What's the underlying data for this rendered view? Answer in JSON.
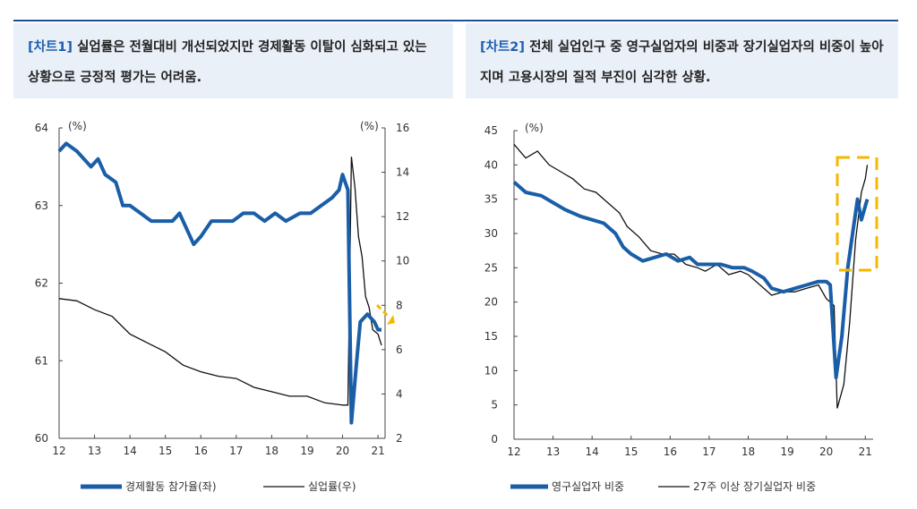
{
  "header_left": {
    "tag": "[차트1]",
    "text": " 실업률은 전월대비 개선되었지만 경제활동 이탈이 심화되고 있는 상황으로 긍정적 평가는 어려움."
  },
  "header_right": {
    "tag": "[차트2]",
    "text": " 전체 실업인구 중 영구실업자의 비중과 장기실업자의 비중이 높아지며 고용시장의 질적 부진이 심각한 상황."
  },
  "chart_data": [
    {
      "type": "line",
      "left_unit": "(%)",
      "right_unit": "(%)",
      "x_ticks": [
        "12",
        "13",
        "14",
        "15",
        "16",
        "17",
        "18",
        "19",
        "20",
        "21"
      ],
      "x_range": [
        2012,
        2021.2
      ],
      "y_left_ticks": [
        "60",
        "61",
        "62",
        "63",
        "64"
      ],
      "y_left_range": [
        60,
        64
      ],
      "y_right_ticks": [
        "2",
        "4",
        "6",
        "8",
        "10",
        "12",
        "14",
        "16"
      ],
      "y_right_range": [
        2,
        16
      ],
      "series": [
        {
          "name": "경제활동 참가율(좌)",
          "axis": "left",
          "color": "#1a5ea8",
          "points": [
            [
              2012.0,
              63.7
            ],
            [
              2012.2,
              63.8
            ],
            [
              2012.5,
              63.7
            ],
            [
              2012.7,
              63.6
            ],
            [
              2012.9,
              63.5
            ],
            [
              2013.1,
              63.6
            ],
            [
              2013.3,
              63.4
            ],
            [
              2013.6,
              63.3
            ],
            [
              2013.8,
              63.0
            ],
            [
              2014.0,
              63.0
            ],
            [
              2014.3,
              62.9
            ],
            [
              2014.6,
              62.8
            ],
            [
              2014.9,
              62.8
            ],
            [
              2015.2,
              62.8
            ],
            [
              2015.4,
              62.9
            ],
            [
              2015.6,
              62.7
            ],
            [
              2015.8,
              62.5
            ],
            [
              2016.0,
              62.6
            ],
            [
              2016.3,
              62.8
            ],
            [
              2016.6,
              62.8
            ],
            [
              2016.9,
              62.8
            ],
            [
              2017.2,
              62.9
            ],
            [
              2017.5,
              62.9
            ],
            [
              2017.8,
              62.8
            ],
            [
              2018.1,
              62.9
            ],
            [
              2018.4,
              62.8
            ],
            [
              2018.8,
              62.9
            ],
            [
              2019.1,
              62.9
            ],
            [
              2019.4,
              63.0
            ],
            [
              2019.7,
              63.1
            ],
            [
              2019.9,
              63.2
            ],
            [
              2020.0,
              63.4
            ],
            [
              2020.15,
              63.2
            ],
            [
              2020.25,
              60.2
            ],
            [
              2020.4,
              61.0
            ],
            [
              2020.5,
              61.5
            ],
            [
              2020.7,
              61.6
            ],
            [
              2020.9,
              61.5
            ],
            [
              2021.0,
              61.4
            ],
            [
              2021.1,
              61.4
            ]
          ]
        },
        {
          "name": "실업률(우)",
          "axis": "right",
          "color": "#111111",
          "points": [
            [
              2012.0,
              8.3
            ],
            [
              2012.5,
              8.2
            ],
            [
              2013.0,
              7.8
            ],
            [
              2013.5,
              7.5
            ],
            [
              2014.0,
              6.7
            ],
            [
              2014.5,
              6.3
            ],
            [
              2015.0,
              5.9
            ],
            [
              2015.5,
              5.3
            ],
            [
              2016.0,
              5.0
            ],
            [
              2016.5,
              4.8
            ],
            [
              2017.0,
              4.7
            ],
            [
              2017.5,
              4.3
            ],
            [
              2018.0,
              4.1
            ],
            [
              2018.5,
              3.9
            ],
            [
              2019.0,
              3.9
            ],
            [
              2019.5,
              3.6
            ],
            [
              2020.0,
              3.5
            ],
            [
              2020.15,
              3.5
            ],
            [
              2020.25,
              14.7
            ],
            [
              2020.35,
              13.3
            ],
            [
              2020.45,
              11.1
            ],
            [
              2020.55,
              10.2
            ],
            [
              2020.65,
              8.4
            ],
            [
              2020.75,
              7.9
            ],
            [
              2020.85,
              6.9
            ],
            [
              2021.0,
              6.7
            ],
            [
              2021.1,
              6.2
            ]
          ]
        }
      ]
    },
    {
      "type": "line",
      "left_unit": "(%)",
      "x_ticks": [
        "12",
        "13",
        "14",
        "15",
        "16",
        "17",
        "18",
        "19",
        "20",
        "21"
      ],
      "x_range": [
        2012,
        2021.2
      ],
      "y_ticks": [
        "0",
        "5",
        "10",
        "15",
        "20",
        "25",
        "30",
        "35",
        "40",
        "45"
      ],
      "y_range": [
        0,
        45
      ],
      "series": [
        {
          "name": "영구실업자 비중",
          "color": "#1a5ea8",
          "points": [
            [
              2012.0,
              37.5
            ],
            [
              2012.3,
              36.0
            ],
            [
              2012.7,
              35.5
            ],
            [
              2013.0,
              34.5
            ],
            [
              2013.3,
              33.5
            ],
            [
              2013.7,
              32.5
            ],
            [
              2014.0,
              32.0
            ],
            [
              2014.3,
              31.5
            ],
            [
              2014.6,
              30.0
            ],
            [
              2014.8,
              28.0
            ],
            [
              2015.0,
              27.0
            ],
            [
              2015.3,
              26.0
            ],
            [
              2015.6,
              26.5
            ],
            [
              2015.9,
              27.0
            ],
            [
              2016.2,
              26.0
            ],
            [
              2016.5,
              26.5
            ],
            [
              2016.7,
              25.5
            ],
            [
              2017.0,
              25.5
            ],
            [
              2017.3,
              25.5
            ],
            [
              2017.6,
              25.0
            ],
            [
              2017.9,
              25.0
            ],
            [
              2018.1,
              24.5
            ],
            [
              2018.4,
              23.5
            ],
            [
              2018.6,
              22.0
            ],
            [
              2018.9,
              21.5
            ],
            [
              2019.2,
              22.0
            ],
            [
              2019.5,
              22.5
            ],
            [
              2019.8,
              23.0
            ],
            [
              2020.0,
              23.0
            ],
            [
              2020.1,
              22.5
            ],
            [
              2020.25,
              9.0
            ],
            [
              2020.4,
              15.0
            ],
            [
              2020.55,
              25.0
            ],
            [
              2020.7,
              31.0
            ],
            [
              2020.8,
              35.0
            ],
            [
              2020.9,
              32.0
            ],
            [
              2021.0,
              34.0
            ],
            [
              2021.05,
              35.0
            ]
          ]
        },
        {
          "name": "27주 이상 장기실업자 비중",
          "color": "#111111",
          "points": [
            [
              2012.0,
              43.0
            ],
            [
              2012.3,
              41.0
            ],
            [
              2012.6,
              42.0
            ],
            [
              2012.9,
              40.0
            ],
            [
              2013.2,
              39.0
            ],
            [
              2013.5,
              38.0
            ],
            [
              2013.8,
              36.5
            ],
            [
              2014.1,
              36.0
            ],
            [
              2014.4,
              34.5
            ],
            [
              2014.7,
              33.0
            ],
            [
              2014.9,
              31.0
            ],
            [
              2015.2,
              29.5
            ],
            [
              2015.5,
              27.5
            ],
            [
              2015.8,
              27.0
            ],
            [
              2016.1,
              27.0
            ],
            [
              2016.4,
              25.5
            ],
            [
              2016.7,
              25.0
            ],
            [
              2016.9,
              24.5
            ],
            [
              2017.2,
              25.5
            ],
            [
              2017.5,
              24.0
            ],
            [
              2017.8,
              24.5
            ],
            [
              2018.0,
              24.0
            ],
            [
              2018.3,
              22.5
            ],
            [
              2018.6,
              21.0
            ],
            [
              2018.9,
              21.5
            ],
            [
              2019.2,
              21.5
            ],
            [
              2019.5,
              22.0
            ],
            [
              2019.8,
              22.5
            ],
            [
              2020.0,
              20.5
            ],
            [
              2020.2,
              19.5
            ],
            [
              2020.28,
              4.5
            ],
            [
              2020.45,
              8.0
            ],
            [
              2020.6,
              17.0
            ],
            [
              2020.75,
              29.0
            ],
            [
              2020.9,
              36.0
            ],
            [
              2021.0,
              38.0
            ],
            [
              2021.05,
              40.0
            ]
          ]
        }
      ]
    }
  ]
}
